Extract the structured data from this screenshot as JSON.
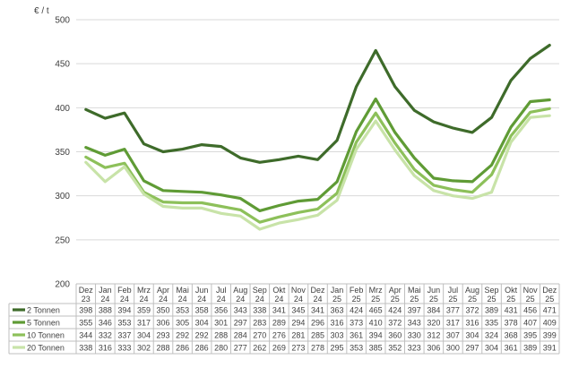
{
  "chart_data": {
    "type": "line",
    "ylabel": "€ / t",
    "ylim": [
      200,
      500
    ],
    "yticks": [
      200,
      250,
      300,
      350,
      400,
      450,
      500
    ],
    "grid": "horizontal",
    "legend": "data-table-left",
    "categories": [
      [
        "Dez",
        "23"
      ],
      [
        "Jan",
        "24"
      ],
      [
        "Feb",
        "24"
      ],
      [
        "Mrz",
        "24"
      ],
      [
        "Apr",
        "24"
      ],
      [
        "Mai",
        "24"
      ],
      [
        "Jun",
        "24"
      ],
      [
        "Jul",
        "24"
      ],
      [
        "Aug",
        "24"
      ],
      [
        "Sep",
        "24"
      ],
      [
        "Okt",
        "24"
      ],
      [
        "Nov",
        "24"
      ],
      [
        "Dez",
        "24"
      ],
      [
        "Jan",
        "25"
      ],
      [
        "Feb",
        "25"
      ],
      [
        "Mrz",
        "25"
      ],
      [
        "Apr",
        "25"
      ],
      [
        "Mai",
        "25"
      ],
      [
        "Jun",
        "25"
      ],
      [
        "Jul",
        "25"
      ],
      [
        "Aug",
        "25"
      ],
      [
        "Sep",
        "25"
      ],
      [
        "Okt",
        "25"
      ],
      [
        "Nov",
        "25"
      ],
      [
        "Dez",
        "25"
      ]
    ],
    "series": [
      {
        "name": "2 Tonnen",
        "color": "#3e6b2a",
        "values": [
          398,
          388,
          394,
          359,
          350,
          353,
          358,
          356,
          343,
          338,
          341,
          345,
          341,
          363,
          424,
          465,
          424,
          397,
          384,
          377,
          372,
          389,
          431,
          456,
          471
        ]
      },
      {
        "name": "5 Tonnen",
        "color": "#5f9b35",
        "values": [
          355,
          346,
          353,
          317,
          306,
          305,
          304,
          301,
          297,
          283,
          289,
          294,
          296,
          316,
          373,
          410,
          372,
          343,
          320,
          317,
          316,
          335,
          378,
          407,
          409
        ]
      },
      {
        "name": "10 Tonnen",
        "color": "#8dc05a",
        "values": [
          344,
          332,
          337,
          304,
          293,
          292,
          292,
          288,
          284,
          270,
          276,
          281,
          285,
          303,
          361,
          394,
          360,
          330,
          312,
          307,
          304,
          324,
          368,
          395,
          399
        ]
      },
      {
        "name": "20 Tonnen",
        "color": "#c8e3a8",
        "values": [
          338,
          316,
          333,
          302,
          288,
          286,
          286,
          280,
          277,
          262,
          269,
          273,
          278,
          295,
          353,
          385,
          352,
          323,
          306,
          300,
          297,
          304,
          361,
          389,
          391
        ]
      }
    ]
  }
}
